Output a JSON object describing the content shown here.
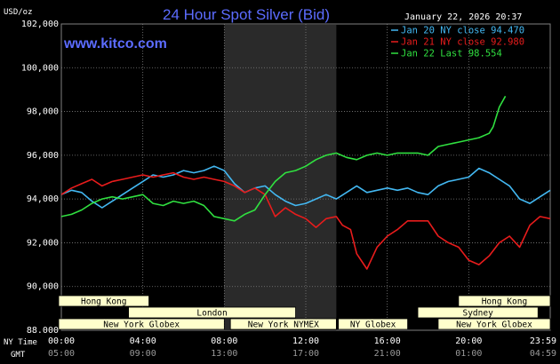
{
  "header": {
    "unit": "USD/oz",
    "title": "24 Hour Spot Silver (Bid)",
    "website": "www.kitco.com",
    "timestamp": "January 22, 2026 20:37"
  },
  "colors": {
    "background": "#000000",
    "grid": "#7f7f7f",
    "jan20": "#43b8f2",
    "jan21": "#e81c1c",
    "jan22": "#30e040",
    "highlight": "#2a2a2a",
    "session": "#ffffcc"
  },
  "axis_labels": {
    "ny_time": "NY Time",
    "gmt": "GMT"
  },
  "chart_data": {
    "type": "line",
    "ylim": [
      88000,
      102000
    ],
    "xlim": [
      0,
      24
    ],
    "y_ticks": [
      {
        "value": 88000,
        "label": "88.000"
      },
      {
        "value": 90000,
        "label": "90,000"
      },
      {
        "value": 92000,
        "label": "92,000"
      },
      {
        "value": 94000,
        "label": "94,000"
      },
      {
        "value": 96000,
        "label": "96,000"
      },
      {
        "value": 98000,
        "label": "98,000"
      },
      {
        "value": 100000,
        "label": "100,000"
      },
      {
        "value": 102000,
        "label": "102,000"
      }
    ],
    "x_ticks": [
      {
        "value": 0,
        "ny": "00:00",
        "gmt": "05:00"
      },
      {
        "value": 4,
        "ny": "04:00",
        "gmt": "09:00"
      },
      {
        "value": 8,
        "ny": "08:00",
        "gmt": "13:00"
      },
      {
        "value": 12,
        "ny": "12:00",
        "gmt": "17:00"
      },
      {
        "value": 16,
        "ny": "16:00",
        "gmt": "21:00"
      },
      {
        "value": 20,
        "ny": "20:00",
        "gmt": "01:00"
      },
      {
        "value": 23.98,
        "ny": "23:59",
        "gmt": "04:59"
      }
    ],
    "highlight_range": [
      8,
      13.5
    ],
    "sessions": [
      {
        "name": "Hong Kong",
        "start": -0.3,
        "end": 4.3,
        "row": 0
      },
      {
        "name": "London",
        "start": 3.3,
        "end": 11.5,
        "row": 1
      },
      {
        "name": "New York Globex",
        "start": -0.3,
        "end": 8,
        "row": 2
      },
      {
        "name": "New York NYMEX",
        "start": 8.3,
        "end": 13.5,
        "row": 2
      },
      {
        "name": "NY Globex",
        "start": 13.6,
        "end": 17,
        "row": 2
      },
      {
        "name": "Sydney",
        "start": 17.5,
        "end": 23.4,
        "row": 1
      },
      {
        "name": "Hong Kong",
        "start": 19.5,
        "end": 24.3,
        "row": 0
      },
      {
        "name": "New York Globex",
        "start": 18.5,
        "end": 24.3,
        "row": 2
      }
    ],
    "series": [
      {
        "name": "Jan 20 NY close 94.470",
        "color_key": "jan20",
        "x": [
          0,
          0.5,
          1,
          1.5,
          2,
          2.5,
          3,
          3.5,
          4,
          4.5,
          5,
          5.5,
          6,
          6.5,
          7,
          7.5,
          8,
          8.5,
          9,
          9.5,
          10,
          10.5,
          11,
          11.5,
          12,
          12.5,
          13,
          13.5,
          14,
          14.5,
          15,
          15.5,
          16,
          16.5,
          17,
          17.5,
          18,
          18.5,
          19,
          19.5,
          20,
          20.5,
          21,
          21.5,
          22,
          22.5,
          23,
          23.5,
          24
        ],
        "y": [
          94200,
          94400,
          94300,
          93900,
          93600,
          93900,
          94200,
          94500,
          94800,
          95100,
          95000,
          95100,
          95300,
          95200,
          95300,
          95500,
          95300,
          94700,
          94300,
          94500,
          94600,
          94200,
          93900,
          93700,
          93800,
          94000,
          94200,
          94000,
          94300,
          94600,
          94300,
          94400,
          94500,
          94400,
          94500,
          94300,
          94200,
          94600,
          94800,
          94900,
          95000,
          95400,
          95200,
          94900,
          94600,
          94000,
          93800,
          94100,
          94400
        ]
      },
      {
        "name": "Jan 21 NY close 92.980",
        "color_key": "jan21",
        "x": [
          0,
          0.5,
          1,
          1.5,
          2,
          2.5,
          3,
          3.5,
          4,
          4.5,
          5,
          5.5,
          6,
          6.5,
          7,
          7.5,
          8,
          8.5,
          9,
          9.5,
          10,
          10.5,
          11,
          11.5,
          12,
          12.5,
          13,
          13.5,
          13.8,
          14.2,
          14.5,
          15,
          15.5,
          16,
          16.5,
          17,
          17.5,
          18,
          18.5,
          19,
          19.5,
          20,
          20.5,
          21,
          21.5,
          22,
          22.5,
          23,
          23.5,
          24
        ],
        "y": [
          94200,
          94500,
          94700,
          94900,
          94600,
          94800,
          94900,
          95000,
          95100,
          95000,
          95100,
          95200,
          95000,
          94900,
          95000,
          94900,
          94800,
          94600,
          94300,
          94500,
          94200,
          93200,
          93600,
          93300,
          93100,
          92700,
          93100,
          93200,
          92800,
          92600,
          91500,
          90800,
          91800,
          92300,
          92600,
          93000,
          93000,
          93000,
          92300,
          92000,
          91800,
          91200,
          91000,
          91400,
          92000,
          92300,
          91800,
          92800,
          93200,
          93100
        ]
      },
      {
        "name": "Jan 22 Last 98.554",
        "color_key": "jan22",
        "x": [
          0,
          0.5,
          1,
          1.5,
          2,
          2.5,
          3,
          3.5,
          4,
          4.5,
          5,
          5.5,
          6,
          6.5,
          7,
          7.5,
          8,
          8.5,
          9,
          9.5,
          10,
          10.5,
          11,
          11.5,
          12,
          12.5,
          13,
          13.5,
          14,
          14.5,
          15,
          15.5,
          16,
          16.5,
          17,
          17.5,
          18,
          18.5,
          19,
          19.5,
          20,
          20.5,
          21,
          21.2,
          21.5,
          21.8
        ],
        "y": [
          93200,
          93300,
          93500,
          93800,
          94000,
          94100,
          94000,
          94100,
          94200,
          93800,
          93700,
          93900,
          93800,
          93900,
          93700,
          93200,
          93100,
          93000,
          93300,
          93500,
          94200,
          94800,
          95200,
          95300,
          95500,
          95800,
          96000,
          96100,
          95900,
          95800,
          96000,
          96100,
          96000,
          96100,
          96100,
          96100,
          96000,
          96400,
          96500,
          96600,
          96700,
          96800,
          97000,
          97300,
          98200,
          98700
        ]
      }
    ]
  }
}
